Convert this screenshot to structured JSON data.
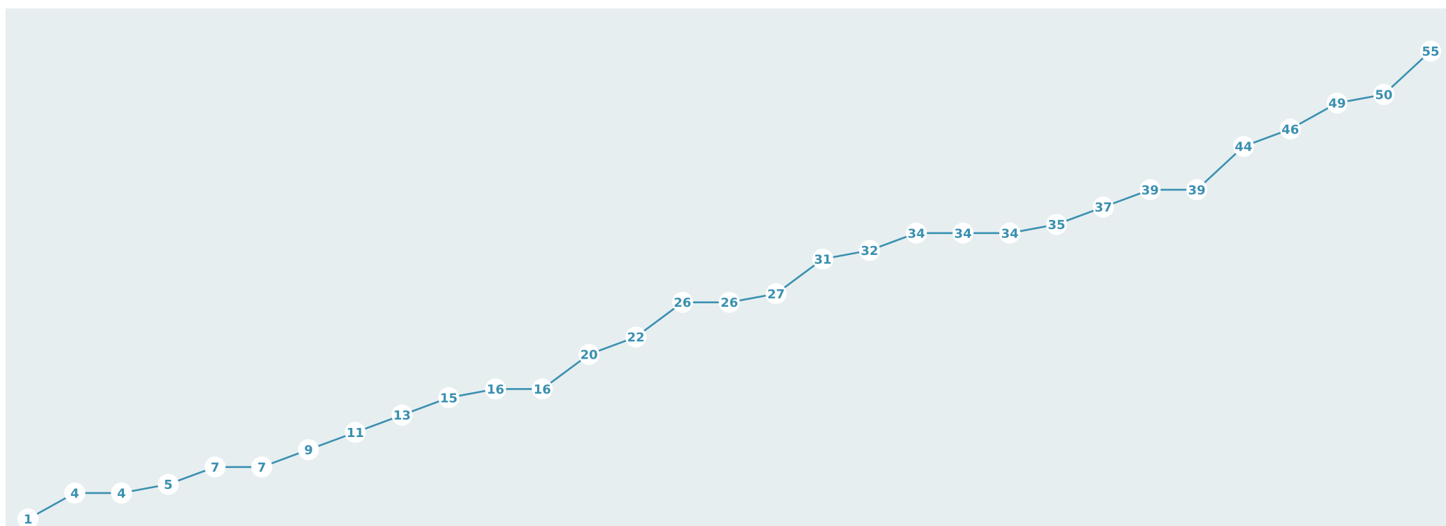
{
  "colors": {
    "page_background": "#ffffff",
    "plot_background": "#e6eef0",
    "line": "#3a90b0",
    "marker_fill": "#ffffff",
    "label_text": "#3a90b0"
  },
  "chart_data": {
    "type": "line",
    "title": "",
    "xlabel": "",
    "ylabel": "",
    "grid": false,
    "legend": "none",
    "axes_visible": false,
    "x": [
      1,
      2,
      3,
      4,
      5,
      6,
      7,
      8,
      9,
      10,
      11,
      12,
      13,
      14,
      15,
      16,
      17,
      18,
      19,
      20,
      21,
      22,
      23,
      24,
      25,
      26,
      27,
      28,
      29,
      30,
      31
    ],
    "xlim": [
      1,
      31
    ],
    "ylim": [
      1,
      55
    ],
    "series": [
      {
        "values": [
          1,
          4,
          4,
          5,
          7,
          7,
          9,
          11,
          13,
          15,
          16,
          16,
          20,
          22,
          26,
          26,
          27,
          31,
          32,
          34,
          34,
          34,
          35,
          37,
          39,
          39,
          44,
          46,
          49,
          50,
          55
        ],
        "data_labels": [
          "1",
          "4",
          "4",
          "5",
          "7",
          "7",
          "9",
          "11",
          "13",
          "15",
          "16",
          "16",
          "20",
          "22",
          "26",
          "26",
          "27",
          "31",
          "32",
          "34",
          "34",
          "34",
          "35",
          "37",
          "39",
          "39",
          "44",
          "46",
          "49",
          "50",
          "55"
        ]
      }
    ]
  }
}
